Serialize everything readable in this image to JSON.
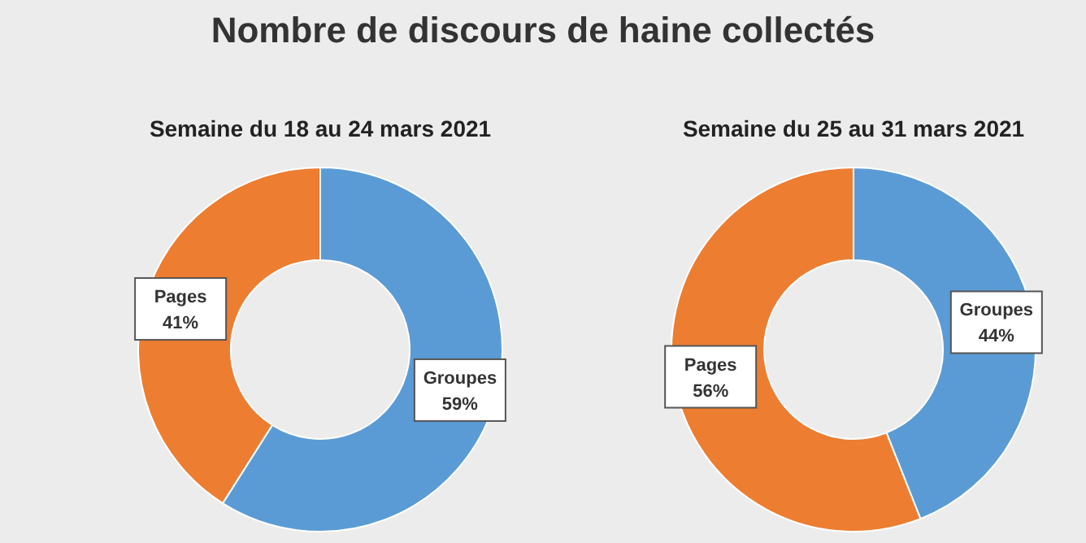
{
  "chart_data": [
    {
      "type": "donut",
      "title": "Nombre de discours de haine collectés",
      "subtitle": "Semaine du 18 au 24 mars 2021",
      "categories": [
        "Groupes",
        "Pages"
      ],
      "values": [
        59,
        41
      ],
      "colors": [
        "#5b9bd5",
        "#ed7d31"
      ],
      "value_labels": [
        "59%",
        "41%"
      ]
    },
    {
      "type": "donut",
      "subtitle": "Semaine du 25 au 31 mars 2021",
      "categories": [
        "Groupes",
        "Pages"
      ],
      "values": [
        44,
        56
      ],
      "colors": [
        "#5b9bd5",
        "#ed7d31"
      ],
      "value_labels": [
        "44%",
        "56%"
      ]
    }
  ]
}
